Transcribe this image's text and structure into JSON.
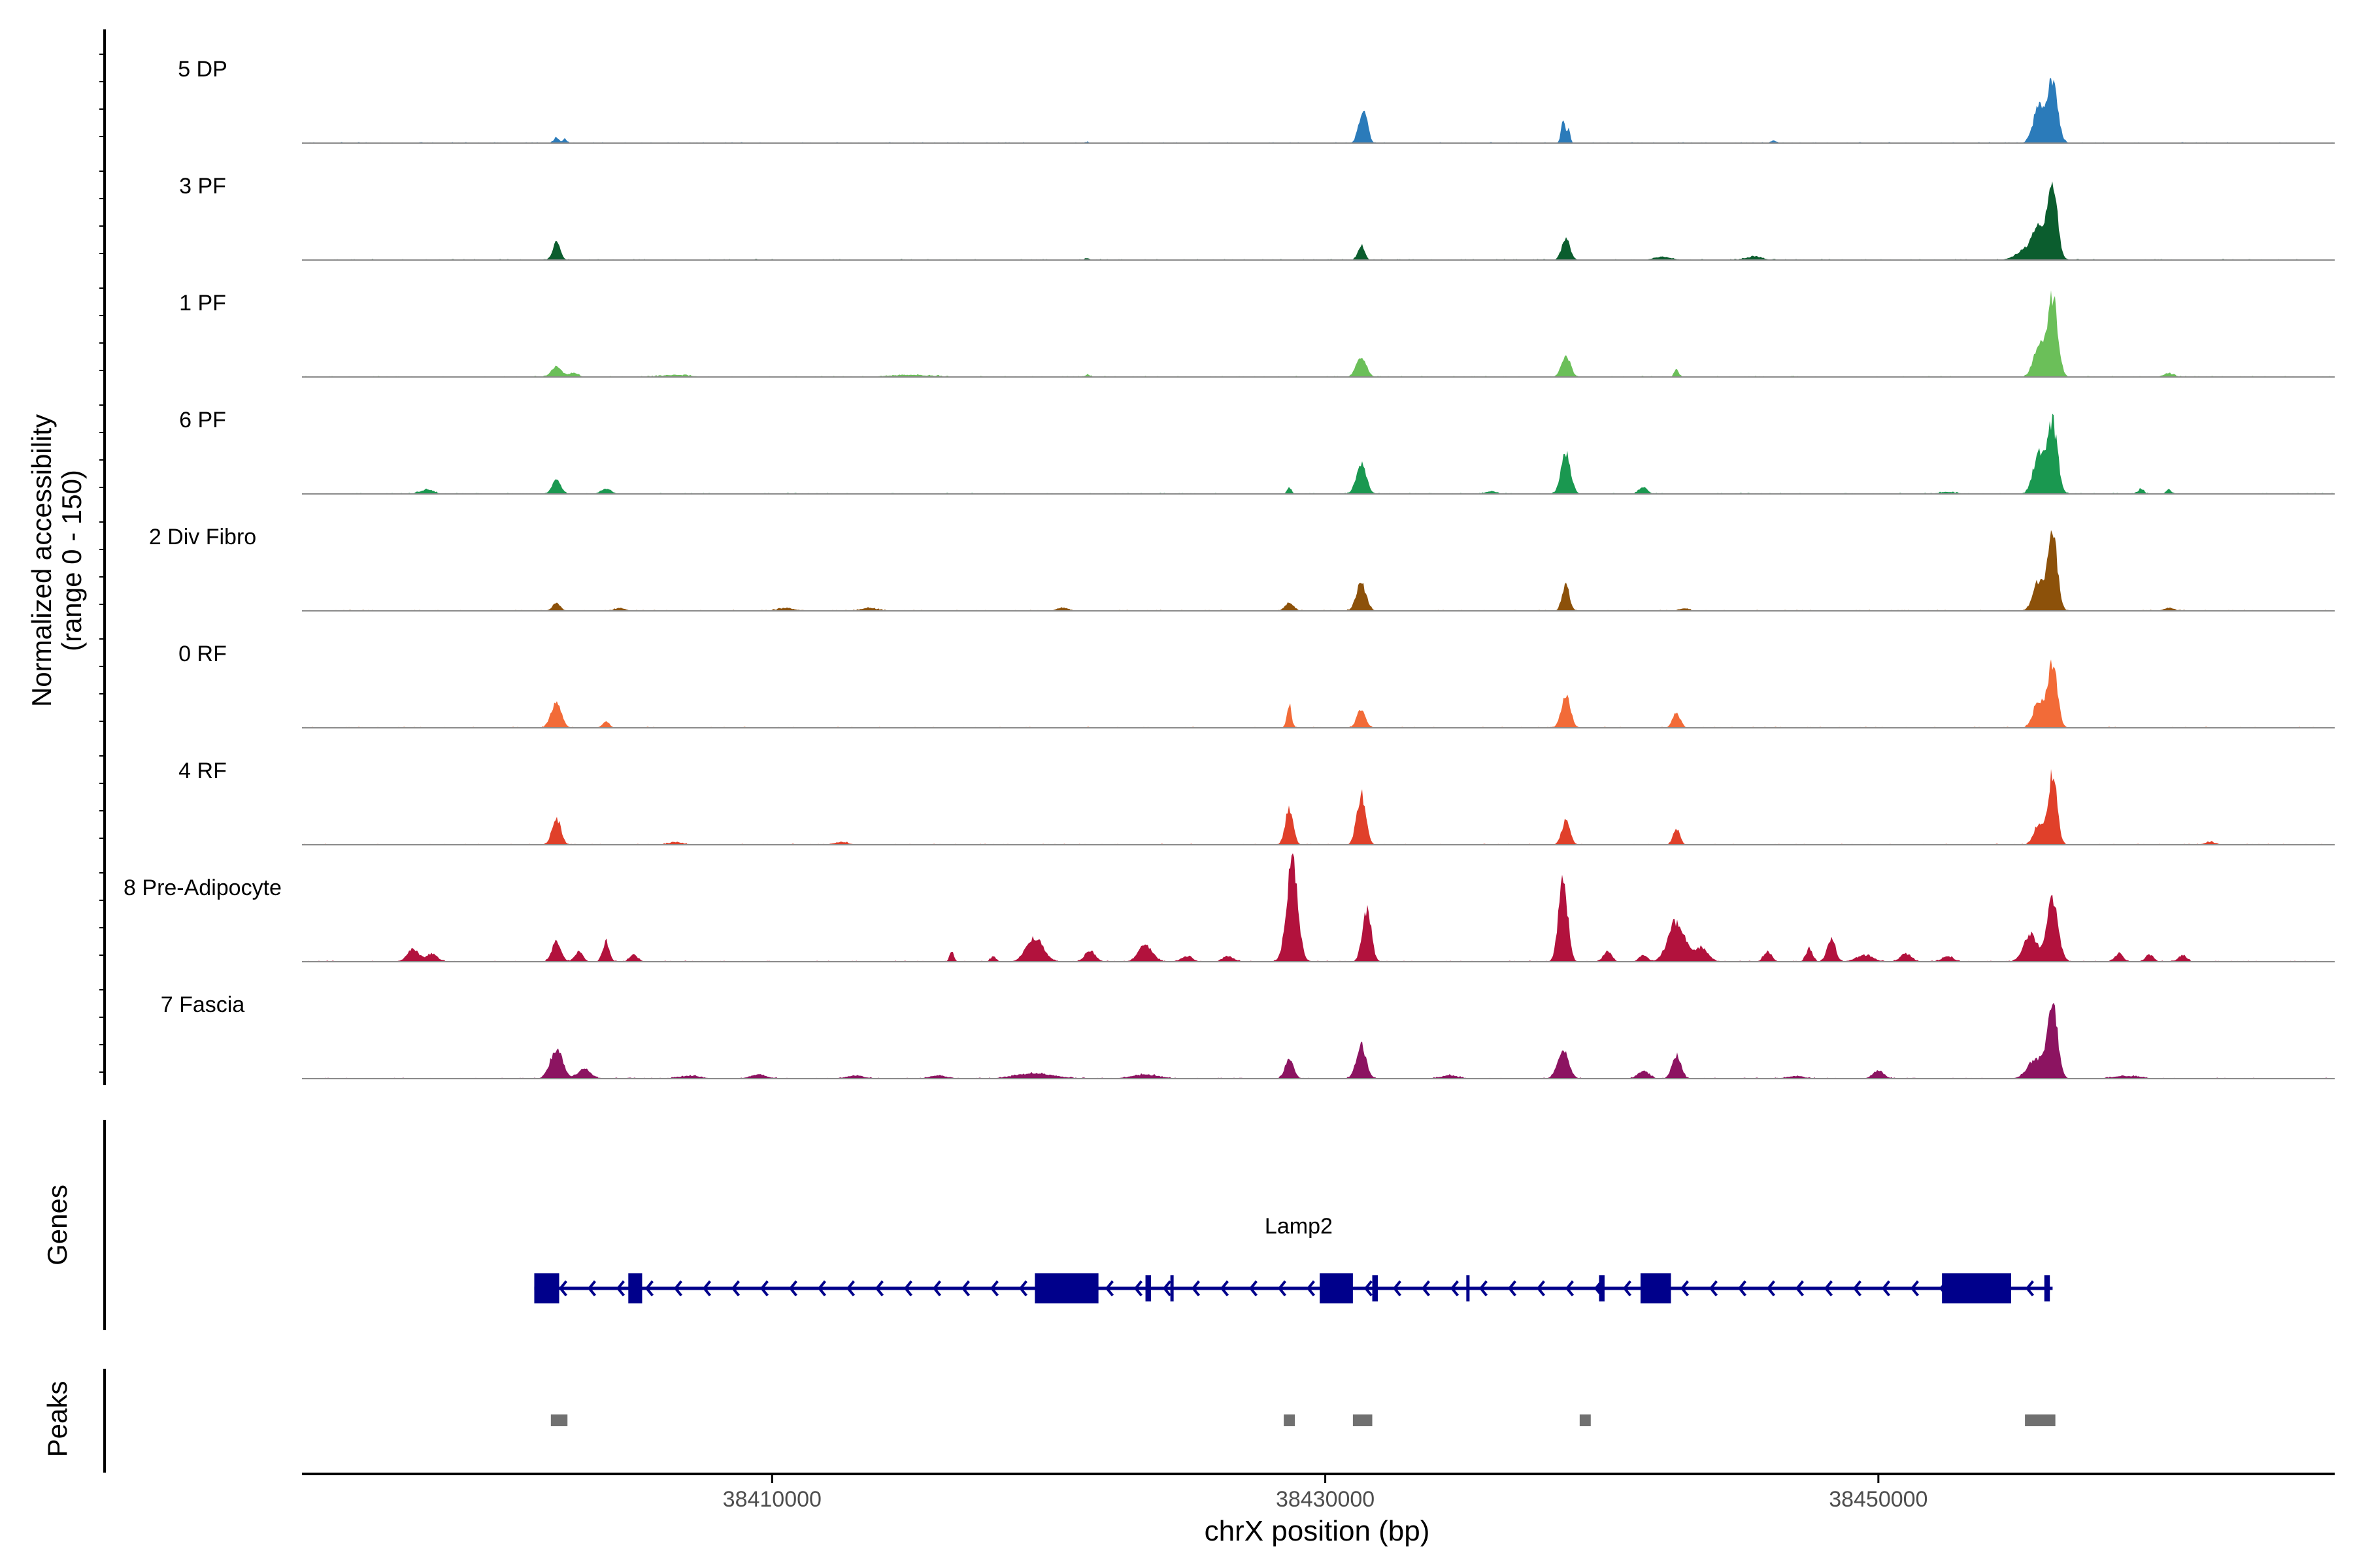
{
  "chart_data": {
    "type": "area",
    "title": "",
    "xlabel": "chrX position (bp)",
    "ylabel_line1": "Normalized accessibility",
    "ylabel_line2": "(range 0 - 150)",
    "ylim": [
      0,
      150
    ],
    "xlim": [
      38393000,
      38466500
    ],
    "x_ticks": [
      38410000,
      38430000,
      38450000
    ],
    "x_tick_labels": [
      "38410000",
      "38430000",
      "38450000"
    ],
    "track_labels": {
      "genes": "Genes",
      "peaks": "Peaks"
    },
    "series": [
      {
        "name": "5 DP",
        "color": "#2b7bba",
        "peaks": [
          [
            38402200,
            8,
            90
          ],
          [
            38402500,
            6,
            70
          ],
          [
            38421400,
            2,
            60
          ],
          [
            38431300,
            38,
            130
          ],
          [
            38431500,
            25,
            100
          ],
          [
            38438600,
            40,
            70
          ],
          [
            38438800,
            20,
            60
          ],
          [
            38446200,
            4,
            80
          ],
          [
            38455800,
            55,
            200
          ],
          [
            38456300,
            95,
            180
          ]
        ]
      },
      {
        "name": "3 PF",
        "color": "#0b5d2e",
        "peaks": [
          [
            38402200,
            25,
            140
          ],
          [
            38421400,
            3,
            80
          ],
          [
            38431300,
            22,
            120
          ],
          [
            38438700,
            32,
            150
          ],
          [
            38442200,
            5,
            300
          ],
          [
            38445500,
            5,
            300
          ],
          [
            38455800,
            35,
            200
          ],
          [
            38456300,
            120,
            170
          ],
          [
            38455500,
            20,
            400
          ]
        ]
      },
      {
        "name": "1 PF",
        "color": "#6bbf59",
        "peaks": [
          [
            38402200,
            15,
            180
          ],
          [
            38402800,
            6,
            180
          ],
          [
            38406500,
            3,
            500
          ],
          [
            38415000,
            3,
            800
          ],
          [
            38421400,
            3,
            100
          ],
          [
            38431300,
            30,
            180
          ],
          [
            38438700,
            34,
            160
          ],
          [
            38442700,
            12,
            80
          ],
          [
            38455800,
            45,
            200
          ],
          [
            38456300,
            120,
            180
          ],
          [
            38460500,
            5,
            200
          ]
        ]
      },
      {
        "name": "6 PF",
        "color": "#1a9850",
        "peaks": [
          [
            38397500,
            6,
            250
          ],
          [
            38402200,
            20,
            160
          ],
          [
            38404000,
            8,
            180
          ],
          [
            38428700,
            10,
            80
          ],
          [
            38431300,
            45,
            180
          ],
          [
            38436000,
            4,
            200
          ],
          [
            38438700,
            60,
            170
          ],
          [
            38441500,
            10,
            150
          ],
          [
            38452500,
            3,
            300
          ],
          [
            38455800,
            60,
            200
          ],
          [
            38456300,
            105,
            180
          ],
          [
            38459500,
            8,
            100
          ],
          [
            38460500,
            6,
            100
          ]
        ]
      },
      {
        "name": "2 Div Fibro",
        "color": "#8c510a",
        "peaks": [
          [
            38402200,
            12,
            140
          ],
          [
            38404500,
            4,
            200
          ],
          [
            38410500,
            4,
            300
          ],
          [
            38413500,
            4,
            300
          ],
          [
            38420500,
            5,
            200
          ],
          [
            38428700,
            12,
            160
          ],
          [
            38431300,
            40,
            180
          ],
          [
            38438700,
            40,
            130
          ],
          [
            38443000,
            4,
            150
          ],
          [
            38455800,
            45,
            200
          ],
          [
            38456300,
            115,
            170
          ],
          [
            38460500,
            4,
            200
          ]
        ]
      },
      {
        "name": "0 RF",
        "color": "#f26b38",
        "peaks": [
          [
            38402200,
            40,
            180
          ],
          [
            38404000,
            10,
            120
          ],
          [
            38428700,
            35,
            80
          ],
          [
            38431300,
            28,
            150
          ],
          [
            38438700,
            50,
            160
          ],
          [
            38442700,
            22,
            140
          ],
          [
            38455800,
            40,
            200
          ],
          [
            38456300,
            95,
            170
          ]
        ]
      },
      {
        "name": "4 RF",
        "color": "#e0402a",
        "peaks": [
          [
            38402200,
            40,
            160
          ],
          [
            38406500,
            4,
            250
          ],
          [
            38412500,
            4,
            250
          ],
          [
            38428700,
            55,
            140
          ],
          [
            38431300,
            75,
            160
          ],
          [
            38438700,
            35,
            150
          ],
          [
            38442700,
            25,
            120
          ],
          [
            38455800,
            30,
            180
          ],
          [
            38456300,
            105,
            160
          ],
          [
            38462000,
            4,
            200
          ]
        ]
      },
      {
        "name": "8 Pre-Adipocyte",
        "color": "#b2123d",
        "peaks": [
          [
            38397000,
            20,
            200
          ],
          [
            38397700,
            12,
            200
          ],
          [
            38402200,
            30,
            160
          ],
          [
            38403000,
            15,
            150
          ],
          [
            38404000,
            30,
            120
          ],
          [
            38405000,
            10,
            150
          ],
          [
            38416500,
            15,
            80
          ],
          [
            38418000,
            8,
            100
          ],
          [
            38419500,
            35,
            300
          ],
          [
            38421500,
            15,
            200
          ],
          [
            38423500,
            25,
            250
          ],
          [
            38425000,
            8,
            200
          ],
          [
            38426500,
            8,
            200
          ],
          [
            38428800,
            150,
            200
          ],
          [
            38431500,
            80,
            160
          ],
          [
            38438600,
            125,
            160
          ],
          [
            38440200,
            15,
            150
          ],
          [
            38441500,
            10,
            150
          ],
          [
            38442700,
            60,
            300
          ],
          [
            38443600,
            20,
            250
          ],
          [
            38446000,
            15,
            150
          ],
          [
            38447500,
            20,
            120
          ],
          [
            38448300,
            35,
            150
          ],
          [
            38449500,
            10,
            300
          ],
          [
            38451000,
            12,
            200
          ],
          [
            38452500,
            8,
            200
          ],
          [
            38455500,
            40,
            250
          ],
          [
            38456300,
            95,
            200
          ],
          [
            38458700,
            12,
            150
          ],
          [
            38459800,
            10,
            150
          ],
          [
            38461000,
            10,
            150
          ]
        ]
      },
      {
        "name": "7 Fascia",
        "color": "#8c1461",
        "peaks": [
          [
            38402200,
            45,
            220
          ],
          [
            38403200,
            15,
            220
          ],
          [
            38407000,
            4,
            400
          ],
          [
            38409500,
            6,
            300
          ],
          [
            38413000,
            5,
            300
          ],
          [
            38416000,
            5,
            300
          ],
          [
            38419500,
            8,
            700
          ],
          [
            38423500,
            6,
            500
          ],
          [
            38428700,
            30,
            150
          ],
          [
            38431300,
            50,
            180
          ],
          [
            38434500,
            5,
            300
          ],
          [
            38438600,
            45,
            200
          ],
          [
            38441500,
            12,
            200
          ],
          [
            38442700,
            35,
            160
          ],
          [
            38447000,
            4,
            300
          ],
          [
            38450000,
            12,
            200
          ],
          [
            38455700,
            30,
            300
          ],
          [
            38456300,
            110,
            180
          ],
          [
            38459000,
            4,
            500
          ]
        ]
      }
    ],
    "gene": {
      "name": "Lamp2",
      "strand": "-",
      "start": 38401400,
      "end": 38456300,
      "exons": [
        [
          38401400,
          38402300
        ],
        [
          38404800,
          38405300
        ],
        [
          38419500,
          38421800
        ],
        [
          38423500,
          38423700
        ],
        [
          38424400,
          38424500
        ],
        [
          38429800,
          38431000
        ],
        [
          38431700,
          38431900
        ],
        [
          38435100,
          38435200
        ],
        [
          38439900,
          38440100
        ],
        [
          38441400,
          38442500
        ],
        [
          38452300,
          38454800
        ],
        [
          38456000,
          38456200
        ]
      ]
    },
    "peak_regions": [
      [
        38402000,
        38402600
      ],
      [
        38428500,
        38428900
      ],
      [
        38431000,
        38431700
      ],
      [
        38439200,
        38439600
      ],
      [
        38455300,
        38456400
      ]
    ]
  }
}
